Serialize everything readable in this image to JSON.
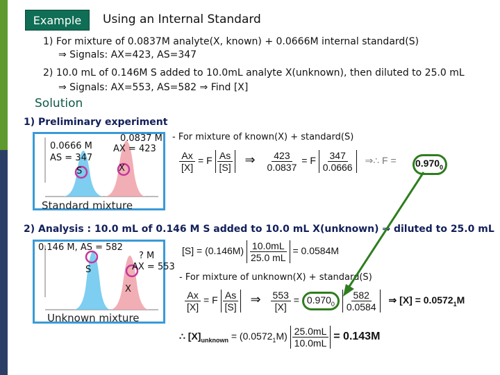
{
  "header": {
    "tag": "Example",
    "title": "Using an Internal Standard"
  },
  "problem": {
    "line1": "1) For mixture of 0.0837M analyte(X, known) + 0.0666M internal standard(S)",
    "line1b": "⇒ Signals: AX=423, AS=347",
    "line2": "2) 10.0 mL of 0.146M S added to 10.0mL analyte X(unknown), then diluted to 25.0 mL",
    "line2b": "⇒ Signals: AX=553, AS=582 ⇒ Find [X]"
  },
  "solution": {
    "heading": "Solution",
    "step1": "1) Preliminary experiment",
    "step1_note": "- For mixture of known(X) + standard(S)",
    "step2": "2) Analysis : 10.0 mL of 0.146 M S added to 10.0 mL X(unknown) ⇒ diluted to 25.0 mL",
    "step2_note": "- For mixture of unknown(X) + standard(S)"
  },
  "panel1": {
    "conc_x": "0.0837 M",
    "ax": "AX = 423",
    "conc_s": "0.0666 M",
    "as": "AS = 347",
    "peak_s": "S",
    "peak_x": "X",
    "caption": "Standard mixture"
  },
  "panel2": {
    "conc_s": "0.146 M, AS = 582",
    "conc_x": "? M",
    "ax": "AX = 553",
    "peak_s": "S",
    "peak_x": "X",
    "caption": "Unknown mixture"
  },
  "eq1": {
    "lhs_num": "Ax",
    "lhs_den": "[X]",
    "f": "= F",
    "rhs_num": "As",
    "rhs_den": "[S]",
    "arrow": "⇒",
    "v_num": "423",
    "v_den": "0.0837",
    "vf": "= F",
    "s_num": "347",
    "s_den": "0.0666",
    "therefore": "⇒∴ F =",
    "result": "0.970",
    "sub": "0"
  },
  "eq_s": {
    "lhs": "[S] = (0.146M)",
    "num": "10.0mL",
    "den": "25.0 mL",
    "result": "= 0.0584M"
  },
  "eq2": {
    "lhs_num": "Ax",
    "lhs_den": "[X]",
    "f": "= F",
    "rhs_num": "As",
    "rhs_den": "[S]",
    "arrow": "⇒",
    "v_num": "553",
    "v_den": "[X]",
    "eqsign": "=",
    "fval": "0.970",
    "fsub": "0",
    "s_num": "582",
    "s_den": "0.0584",
    "result": "⇒ [X] = 0.0572",
    "rsub": "1",
    "runit": "M"
  },
  "eq3": {
    "lhs": "∴ [X]",
    "lhs_sub": "unknown",
    "mid": "= (0.0572",
    "mid_sub": "1",
    "mid2": "M)",
    "num": "25.0mL",
    "den": "10.0mL",
    "result": "= 0.143M"
  },
  "colors": {
    "sidebar_top": "#5e9a2e",
    "sidebar_bottom": "#2b3f66",
    "tag": "#0f6e55",
    "accent_blue": "#1a2fbf",
    "panel_border": "#3a9ad8",
    "highlight_ring": "#2e7d1f",
    "peak_s": "#66c6ee",
    "peak_x": "#f0a0a8"
  }
}
